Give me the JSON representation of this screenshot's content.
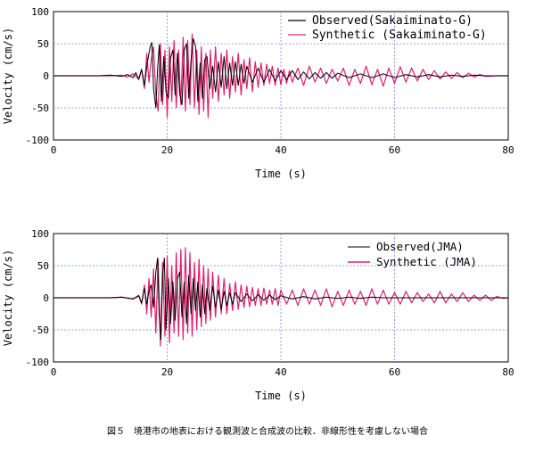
{
  "caption": "図５　境港市の地表における観測波と合成波の比較．非線形性を考慮しない場合",
  "colors": {
    "observed": "#000000",
    "synthetic": "#e0206a",
    "grid": "#7f7fff"
  },
  "chart_data": [
    {
      "type": "line",
      "title": "",
      "xlabel": "Time (s)",
      "ylabel": "Velocity (cm/s)",
      "xlim": [
        0,
        80
      ],
      "ylim": [
        -100,
        100
      ],
      "xticks": [
        0,
        20,
        40,
        60,
        80
      ],
      "yticks": [
        -100,
        -50,
        0,
        50,
        100
      ],
      "grid": true,
      "legend_position": "top-right",
      "series": [
        {
          "name": "Observed(Sakaiminato-G)",
          "color": "#000000",
          "x": [
            0,
            8,
            10,
            12,
            13,
            14,
            14.5,
            15,
            15.5,
            16,
            16.5,
            17,
            17.3,
            17.6,
            18,
            18.3,
            18.6,
            19,
            19.4,
            19.8,
            20.2,
            20.6,
            21,
            21.4,
            21.8,
            22.2,
            22.6,
            23,
            23.4,
            23.8,
            24.2,
            24.6,
            25,
            25.4,
            25.8,
            26.2,
            26.6,
            27,
            27.5,
            28,
            28.5,
            29,
            29.5,
            30,
            30.5,
            31,
            31.5,
            32,
            32.5,
            33,
            33.5,
            34,
            35,
            36,
            37,
            38,
            39,
            40,
            41,
            42,
            43,
            44,
            45,
            46,
            47,
            48,
            49,
            50,
            52,
            54,
            56,
            58,
            60,
            62,
            64,
            66,
            68,
            70,
            72,
            74,
            76,
            78,
            80
          ],
          "y": [
            0,
            0,
            1,
            -1,
            2,
            -3,
            5,
            -6,
            10,
            -15,
            20,
            45,
            52,
            -20,
            -50,
            10,
            48,
            -40,
            30,
            -25,
            -35,
            28,
            40,
            -30,
            35,
            -28,
            -45,
            40,
            50,
            -35,
            25,
            58,
            45,
            -40,
            20,
            -35,
            25,
            30,
            -20,
            15,
            -25,
            22,
            -18,
            30,
            -20,
            20,
            -15,
            22,
            -15,
            18,
            -12,
            15,
            -10,
            12,
            -10,
            10,
            -8,
            8,
            -6,
            8,
            -6,
            6,
            -5,
            5,
            -4,
            5,
            -4,
            4,
            -3,
            3,
            -3,
            3,
            -3,
            2,
            -2,
            2,
            -2,
            1,
            -1,
            1,
            0,
            0,
            0
          ]
        },
        {
          "name": "Synthetic (Sakaiminato-G)",
          "color": "#e0206a",
          "x": [
            0,
            10,
            12,
            13,
            14,
            15,
            15.5,
            16,
            16.4,
            16.8,
            17.2,
            17.6,
            18,
            18.4,
            18.8,
            19.2,
            19.6,
            20,
            20.4,
            20.8,
            21.2,
            21.6,
            22,
            22.4,
            22.8,
            23.2,
            23.6,
            24,
            24.4,
            24.8,
            25.2,
            25.6,
            26,
            26.4,
            26.8,
            27.2,
            27.6,
            28,
            28.5,
            29,
            29.5,
            30,
            30.5,
            31,
            31.5,
            32,
            32.5,
            33,
            33.5,
            34,
            34.5,
            35,
            35.5,
            36,
            36.5,
            37,
            37.5,
            38,
            38.5,
            39,
            39.5,
            40,
            40.5,
            41,
            41.5,
            42,
            43,
            44,
            45,
            46,
            47,
            48,
            49,
            50,
            51,
            52,
            53,
            54,
            55,
            56,
            57,
            58,
            59,
            60,
            61,
            62,
            63,
            64,
            65,
            66,
            67,
            68,
            69,
            70,
            71,
            72,
            73,
            74,
            75,
            76,
            78,
            80
          ],
          "y": [
            0,
            0,
            1,
            -2,
            3,
            -5,
            10,
            -20,
            35,
            -10,
            25,
            45,
            -30,
            -55,
            50,
            -45,
            40,
            -65,
            45,
            -40,
            55,
            -50,
            40,
            -45,
            60,
            -55,
            55,
            -45,
            65,
            -50,
            40,
            -60,
            45,
            -55,
            35,
            -65,
            40,
            -35,
            45,
            -40,
            35,
            -30,
            40,
            -35,
            30,
            -25,
            35,
            -30,
            25,
            -20,
            28,
            -25,
            22,
            -18,
            20,
            -15,
            18,
            -12,
            15,
            -15,
            12,
            -14,
            10,
            -12,
            8,
            -10,
            12,
            -15,
            15,
            -10,
            12,
            -12,
            10,
            -8,
            12,
            -15,
            10,
            -12,
            15,
            -14,
            10,
            -16,
            12,
            -12,
            14,
            -10,
            12,
            -8,
            10,
            -6,
            8,
            -5,
            6,
            -4,
            5,
            -3,
            4,
            -2,
            2,
            -1,
            0,
            0
          ]
        }
      ]
    },
    {
      "type": "line",
      "title": "",
      "xlabel": "Time (s)",
      "ylabel": "Velocity (cm/s)",
      "xlim": [
        0,
        80
      ],
      "ylim": [
        -100,
        100
      ],
      "xticks": [
        0,
        20,
        40,
        60,
        80
      ],
      "yticks": [
        -100,
        -50,
        0,
        50,
        100
      ],
      "grid": true,
      "legend_position": "top-right",
      "series": [
        {
          "name": "Observed(JMA)",
          "color": "#000000",
          "x": [
            0,
            10,
            12,
            14,
            15,
            15.5,
            16,
            16.4,
            16.8,
            17.2,
            17.6,
            18,
            18.3,
            18.6,
            18.9,
            19.2,
            19.5,
            19.8,
            20.2,
            20.6,
            21,
            21.4,
            21.8,
            22.2,
            22.6,
            23,
            23.4,
            23.8,
            24.2,
            24.6,
            25,
            25.4,
            25.8,
            26.2,
            26.6,
            27,
            27.5,
            28,
            28.5,
            29,
            29.5,
            30,
            30.5,
            31,
            31.5,
            32,
            33,
            34,
            35,
            36,
            37,
            38,
            39,
            40,
            42,
            44,
            46,
            48,
            50,
            52,
            54,
            56,
            58,
            60,
            65,
            70,
            75,
            80
          ],
          "y": [
            0,
            0,
            1,
            -2,
            3,
            -8,
            15,
            -10,
            10,
            20,
            -15,
            40,
            62,
            -30,
            -65,
            35,
            62,
            -50,
            30,
            -40,
            25,
            -35,
            30,
            40,
            -30,
            25,
            -40,
            35,
            -25,
            30,
            -20,
            25,
            -30,
            20,
            -25,
            15,
            -20,
            18,
            -15,
            12,
            -18,
            10,
            -12,
            8,
            -10,
            8,
            -6,
            6,
            -5,
            5,
            -4,
            4,
            -3,
            3,
            -2,
            2,
            -2,
            1,
            -1,
            1,
            -1,
            1,
            0,
            0,
            0,
            0,
            0,
            0
          ]
        },
        {
          "name": "Synthetic (JMA)",
          "color": "#e0206a",
          "x": [
            0,
            10,
            12,
            14,
            15,
            15.5,
            16,
            16.4,
            16.8,
            17.2,
            17.6,
            18,
            18.4,
            18.8,
            19.2,
            19.6,
            20,
            20.4,
            20.8,
            21.2,
            21.6,
            22,
            22.4,
            22.8,
            23.2,
            23.6,
            24,
            24.4,
            24.8,
            25.2,
            25.6,
            26,
            26.4,
            26.8,
            27.2,
            27.6,
            28,
            28.5,
            29,
            29.5,
            30,
            30.5,
            31,
            31.5,
            32,
            32.5,
            33,
            33.5,
            34,
            34.5,
            35,
            35.5,
            36,
            36.5,
            37,
            37.5,
            38,
            38.5,
            39,
            39.5,
            40,
            41,
            42,
            43,
            44,
            45,
            46,
            47,
            48,
            49,
            50,
            51,
            52,
            53,
            54,
            55,
            56,
            57,
            58,
            59,
            60,
            61,
            62,
            63,
            64,
            65,
            66,
            67,
            68,
            69,
            70,
            71,
            72,
            73,
            74,
            75,
            76,
            77,
            78,
            79,
            80
          ],
          "y": [
            0,
            0,
            1,
            -2,
            4,
            -10,
            20,
            -25,
            30,
            -30,
            45,
            -55,
            60,
            -75,
            55,
            -60,
            65,
            -70,
            50,
            -55,
            70,
            -60,
            75,
            -65,
            78,
            -55,
            70,
            -60,
            55,
            -50,
            60,
            -45,
            50,
            -40,
            45,
            -35,
            40,
            -30,
            35,
            -25,
            30,
            -25,
            22,
            -20,
            25,
            -18,
            20,
            -15,
            18,
            -14,
            16,
            -12,
            14,
            -12,
            15,
            -10,
            12,
            -10,
            14,
            -12,
            12,
            -10,
            12,
            -12,
            14,
            -10,
            12,
            -12,
            14,
            -14,
            10,
            -12,
            12,
            -10,
            10,
            -12,
            14,
            -10,
            12,
            -10,
            8,
            -10,
            10,
            -8,
            8,
            -6,
            6,
            -8,
            10,
            -8,
            6,
            -6,
            8,
            -6,
            4,
            -4,
            4,
            -4,
            2,
            -1,
            0
          ]
        }
      ]
    }
  ]
}
